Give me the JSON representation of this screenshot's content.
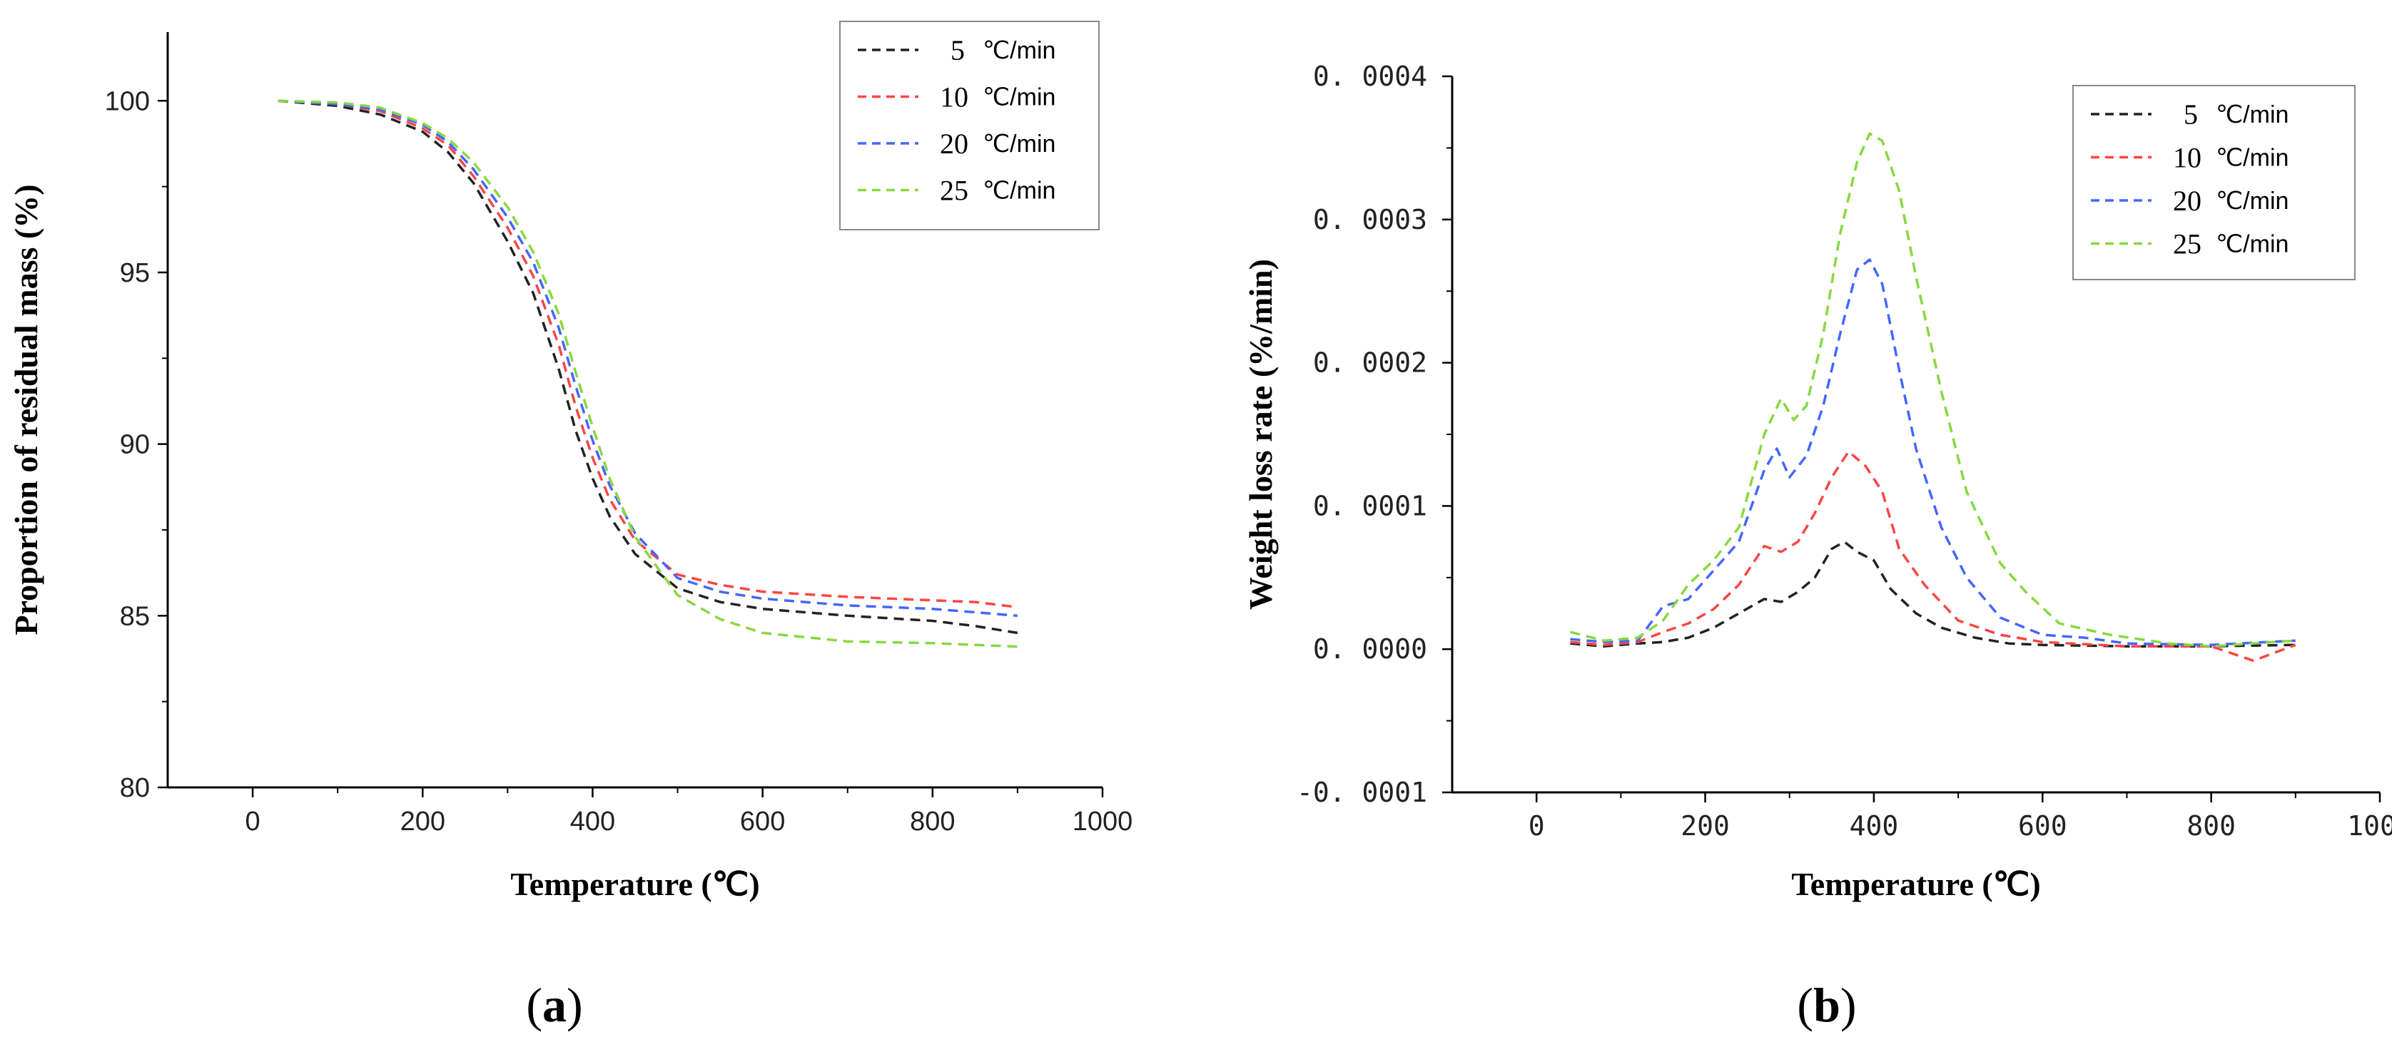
{
  "colors": {
    "series": [
      "#222222",
      "#ff4444",
      "#4466ff",
      "#88d840"
    ],
    "axis": "#000000"
  },
  "legend_suffix": "℃/min",
  "chart_data": [
    {
      "id": "a",
      "type": "line",
      "panel_label": "a",
      "xlabel": "Temperature (℃)",
      "ylabel": "Proportion of residual mass (%)",
      "xlim": [
        -100,
        1000
      ],
      "ylim": [
        80,
        102
      ],
      "xticks": [
        0,
        200,
        400,
        600,
        800,
        1000
      ],
      "yticks": [
        80,
        85,
        90,
        95,
        100
      ],
      "legend_position": "top-right",
      "series": [
        {
          "name": "5",
          "points": [
            [
              30,
              100
            ],
            [
              100,
              99.85
            ],
            [
              150,
              99.6
            ],
            [
              200,
              99.1
            ],
            [
              230,
              98.5
            ],
            [
              260,
              97.6
            ],
            [
              300,
              95.9
            ],
            [
              330,
              94.4
            ],
            [
              360,
              92.2
            ],
            [
              380,
              90.4
            ],
            [
              400,
              89.0
            ],
            [
              420,
              87.9
            ],
            [
              450,
              86.8
            ],
            [
              500,
              85.8
            ],
            [
              550,
              85.4
            ],
            [
              600,
              85.2
            ],
            [
              700,
              85.0
            ],
            [
              800,
              84.85
            ],
            [
              850,
              84.7
            ],
            [
              900,
              84.5
            ]
          ]
        },
        {
          "name": "10",
          "points": [
            [
              30,
              100
            ],
            [
              100,
              99.9
            ],
            [
              150,
              99.7
            ],
            [
              200,
              99.2
            ],
            [
              230,
              98.7
            ],
            [
              260,
              97.8
            ],
            [
              300,
              96.3
            ],
            [
              330,
              94.9
            ],
            [
              360,
              92.9
            ],
            [
              380,
              91.1
            ],
            [
              400,
              89.6
            ],
            [
              420,
              88.4
            ],
            [
              450,
              87.2
            ],
            [
              500,
              86.2
            ],
            [
              550,
              85.9
            ],
            [
              600,
              85.7
            ],
            [
              700,
              85.55
            ],
            [
              800,
              85.45
            ],
            [
              850,
              85.4
            ],
            [
              900,
              85.25
            ]
          ]
        },
        {
          "name": "20",
          "points": [
            [
              30,
              100
            ],
            [
              100,
              99.9
            ],
            [
              150,
              99.75
            ],
            [
              200,
              99.3
            ],
            [
              230,
              98.8
            ],
            [
              260,
              98.0
            ],
            [
              300,
              96.6
            ],
            [
              330,
              95.3
            ],
            [
              360,
              93.4
            ],
            [
              380,
              91.7
            ],
            [
              400,
              90.1
            ],
            [
              420,
              88.8
            ],
            [
              450,
              87.4
            ],
            [
              500,
              86.1
            ],
            [
              550,
              85.7
            ],
            [
              600,
              85.5
            ],
            [
              700,
              85.3
            ],
            [
              800,
              85.2
            ],
            [
              850,
              85.1
            ],
            [
              900,
              85.0
            ]
          ]
        },
        {
          "name": "25",
          "points": [
            [
              30,
              100
            ],
            [
              100,
              99.95
            ],
            [
              150,
              99.8
            ],
            [
              200,
              99.35
            ],
            [
              230,
              98.9
            ],
            [
              260,
              98.2
            ],
            [
              300,
              96.9
            ],
            [
              330,
              95.6
            ],
            [
              360,
              93.8
            ],
            [
              380,
              92.1
            ],
            [
              400,
              90.5
            ],
            [
              420,
              89.0
            ],
            [
              450,
              87.3
            ],
            [
              500,
              85.6
            ],
            [
              550,
              84.9
            ],
            [
              600,
              84.5
            ],
            [
              700,
              84.25
            ],
            [
              800,
              84.2
            ],
            [
              850,
              84.15
            ],
            [
              900,
              84.1
            ]
          ]
        }
      ]
    },
    {
      "id": "b",
      "type": "line",
      "panel_label": "b",
      "xlabel": "Temperature (℃)",
      "ylabel": "Weight loss rate (%/min)",
      "xlim": [
        -100,
        1000
      ],
      "ylim": [
        -0.0001,
        0.0004
      ],
      "xticks": [
        0,
        200,
        400,
        600,
        800,
        1000
      ],
      "yticks": [
        "-0.0001",
        "0.0000",
        "0.0001",
        "0.0002",
        "0.0003",
        "0.0004"
      ],
      "legend_position": "top-right",
      "series": [
        {
          "name": "5",
          "points": [
            [
              40,
              4e-06
            ],
            [
              80,
              2e-06
            ],
            [
              120,
              4e-06
            ],
            [
              150,
              5e-06
            ],
            [
              180,
              8e-06
            ],
            [
              210,
              1.5e-05
            ],
            [
              240,
              2.5e-05
            ],
            [
              270,
              3.5e-05
            ],
            [
              290,
              3.3e-05
            ],
            [
              310,
              4e-05
            ],
            [
              330,
              5e-05
            ],
            [
              350,
              7e-05
            ],
            [
              365,
              7.5e-05
            ],
            [
              380,
              6.8e-05
            ],
            [
              400,
              6.2e-05
            ],
            [
              420,
              4.2e-05
            ],
            [
              450,
              2.5e-05
            ],
            [
              480,
              1.5e-05
            ],
            [
              520,
              8e-06
            ],
            [
              560,
              4e-06
            ],
            [
              600,
              3e-06
            ],
            [
              700,
              2e-06
            ],
            [
              800,
              2e-06
            ],
            [
              900,
              3e-06
            ]
          ]
        },
        {
          "name": "10",
          "points": [
            [
              40,
              5e-06
            ],
            [
              80,
              3e-06
            ],
            [
              120,
              5e-06
            ],
            [
              150,
              1.2e-05
            ],
            [
              180,
              1.8e-05
            ],
            [
              210,
              2.8e-05
            ],
            [
              240,
              4.5e-05
            ],
            [
              270,
              7.2e-05
            ],
            [
              290,
              6.8e-05
            ],
            [
              310,
              7.5e-05
            ],
            [
              330,
              9.5e-05
            ],
            [
              350,
              0.00012
            ],
            [
              370,
              0.000138
            ],
            [
              390,
              0.000128
            ],
            [
              410,
              0.00011
            ],
            [
              430,
              7e-05
            ],
            [
              460,
              4.5e-05
            ],
            [
              500,
              2e-05
            ],
            [
              550,
              1e-05
            ],
            [
              600,
              5e-06
            ],
            [
              700,
              2e-06
            ],
            [
              800,
              2e-06
            ],
            [
              850,
              -8e-06
            ],
            [
              900,
              3e-06
            ]
          ]
        },
        {
          "name": "20",
          "points": [
            [
              40,
              7e-06
            ],
            [
              80,
              5e-06
            ],
            [
              120,
              6e-06
            ],
            [
              150,
              3e-05
            ],
            [
              180,
              3.5e-05
            ],
            [
              210,
              5.5e-05
            ],
            [
              240,
              7.5e-05
            ],
            [
              270,
              0.000125
            ],
            [
              285,
              0.00014
            ],
            [
              300,
              0.00012
            ],
            [
              320,
              0.000135
            ],
            [
              340,
              0.00017
            ],
            [
              360,
              0.00022
            ],
            [
              380,
              0.000265
            ],
            [
              395,
              0.000272
            ],
            [
              410,
              0.000255
            ],
            [
              430,
              0.000195
            ],
            [
              450,
              0.00014
            ],
            [
              480,
              8.5e-05
            ],
            [
              510,
              5e-05
            ],
            [
              550,
              2.2e-05
            ],
            [
              600,
              1e-05
            ],
            [
              650,
              8e-06
            ],
            [
              700,
              4e-06
            ],
            [
              800,
              3e-06
            ],
            [
              900,
              6e-06
            ]
          ]
        },
        {
          "name": "25",
          "points": [
            [
              40,
              1.2e-05
            ],
            [
              80,
              6e-06
            ],
            [
              120,
              8e-06
            ],
            [
              150,
              2e-05
            ],
            [
              180,
              4.5e-05
            ],
            [
              210,
              6.2e-05
            ],
            [
              240,
              8.5e-05
            ],
            [
              270,
              0.00015
            ],
            [
              290,
              0.000175
            ],
            [
              305,
              0.00016
            ],
            [
              320,
              0.00017
            ],
            [
              340,
              0.00022
            ],
            [
              360,
              0.00029
            ],
            [
              380,
              0.00034
            ],
            [
              395,
              0.00036
            ],
            [
              410,
              0.000355
            ],
            [
              430,
              0.00032
            ],
            [
              450,
              0.00026
            ],
            [
              480,
              0.00018
            ],
            [
              510,
              0.00011
            ],
            [
              550,
              6e-05
            ],
            [
              580,
              4e-05
            ],
            [
              620,
              1.8e-05
            ],
            [
              680,
              1e-05
            ],
            [
              750,
              4e-06
            ],
            [
              800,
              2e-06
            ],
            [
              900,
              6e-06
            ]
          ]
        }
      ]
    }
  ]
}
